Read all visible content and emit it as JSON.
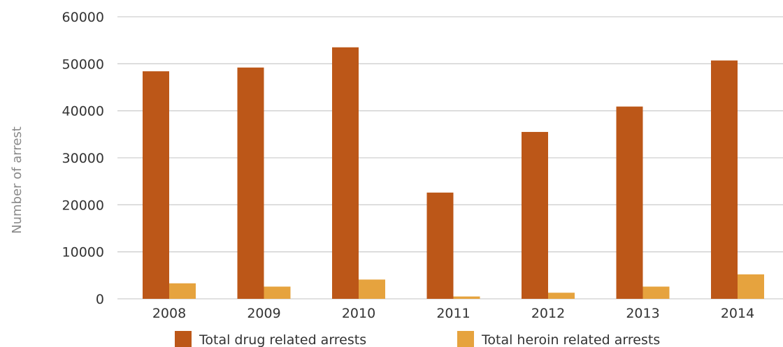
{
  "chart_data": {
    "type": "bar",
    "title": "",
    "xlabel": "",
    "ylabel": "Number of arrest",
    "categories": [
      "2008",
      "2009",
      "2010",
      "2011",
      "2012",
      "2013",
      "2014"
    ],
    "series": [
      {
        "name": "Total drug related arrests",
        "color": "#bc5718",
        "values": [
          48400,
          49200,
          53500,
          22600,
          35500,
          40900,
          50700
        ]
      },
      {
        "name": "Total heroin related arrests",
        "color": "#e6a33e",
        "values": [
          3300,
          2600,
          4100,
          500,
          1300,
          2600,
          5200
        ]
      }
    ],
    "ylim": [
      0,
      60000
    ],
    "yticks": [
      0,
      10000,
      20000,
      30000,
      40000,
      50000,
      60000
    ],
    "grid": true,
    "legend_position": "bottom"
  }
}
